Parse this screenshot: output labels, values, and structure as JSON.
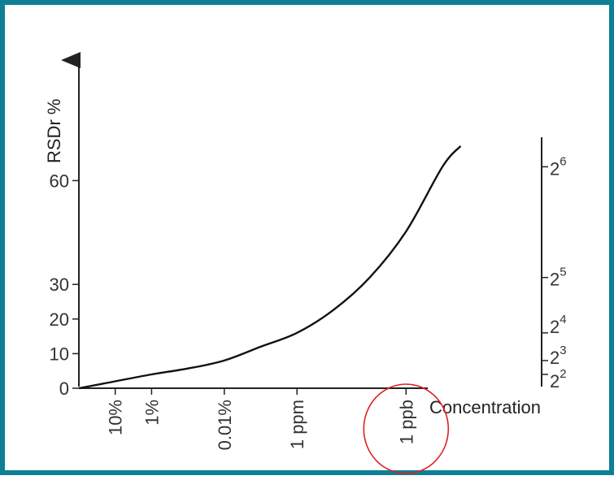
{
  "colors": {
    "frame_border": "#0e7f95",
    "annotation_circle": "#e02020",
    "curve": "#111111"
  },
  "chart_data": {
    "type": "line",
    "title": "",
    "ylabel": "RSDr %",
    "xlabel": "Concentration",
    "y_ticks": [
      {
        "value": 0,
        "label": "0"
      },
      {
        "value": 10,
        "label": "10"
      },
      {
        "value": 20,
        "label": "20"
      },
      {
        "value": 30,
        "label": "30"
      },
      {
        "value": 60,
        "label": "60"
      }
    ],
    "right_ticks": [
      {
        "value": 4,
        "base": "2",
        "exp": "2"
      },
      {
        "value": 8,
        "base": "2",
        "exp": "3"
      },
      {
        "value": 16,
        "base": "2",
        "exp": "4"
      },
      {
        "value": 32,
        "base": "2",
        "exp": "5"
      },
      {
        "value": 64,
        "base": "2",
        "exp": "6"
      }
    ],
    "x_ticks": [
      {
        "value": -1,
        "label": "10%"
      },
      {
        "value": -2,
        "label": "1%"
      },
      {
        "value": -4,
        "label": "0.01%"
      },
      {
        "value": -6,
        "label": "1 ppm"
      },
      {
        "value": -9,
        "label": "1 ppb"
      }
    ],
    "x_axis_note": "log10 of mass fraction",
    "highlight": {
      "x_value": -9,
      "label": "1 ppb",
      "shape": "circle"
    },
    "series": [
      {
        "values": [
          {
            "x": 0,
            "y": 0
          },
          {
            "x": -1,
            "y": 2
          },
          {
            "x": -2,
            "y": 4
          },
          {
            "x": -3,
            "y": 5.7
          },
          {
            "x": -4,
            "y": 8
          },
          {
            "x": -5,
            "y": 12
          },
          {
            "x": -6,
            "y": 16
          },
          {
            "x": -7,
            "y": 22.6
          },
          {
            "x": -8,
            "y": 32
          },
          {
            "x": -9,
            "y": 45.3
          },
          {
            "x": -10,
            "y": 64
          },
          {
            "x": -10.5,
            "y": 70
          }
        ]
      }
    ]
  }
}
